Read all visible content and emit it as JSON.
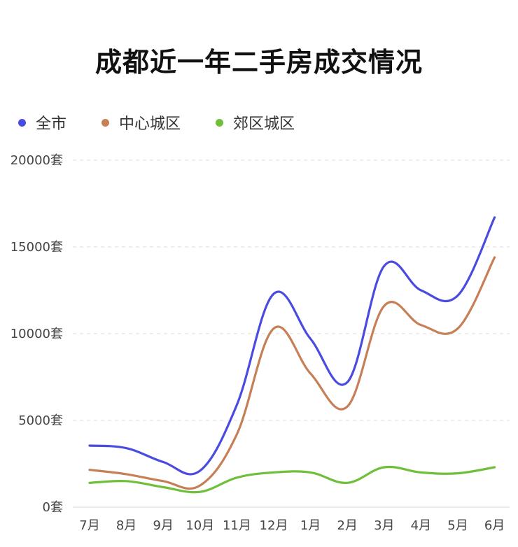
{
  "title": "成都近一年二手房成交情况",
  "chart_data": {
    "type": "line",
    "title": "成都近一年二手房成交情况",
    "categories": [
      "7月",
      "8月",
      "9月",
      "10月",
      "11月",
      "12月",
      "1月",
      "2月",
      "3月",
      "4月",
      "5月",
      "6月"
    ],
    "y_ticks": [
      "0套",
      "5000套",
      "10000套",
      "15000套",
      "20000套"
    ],
    "ylim": [
      0,
      20000
    ],
    "grid": true,
    "legend_position": "top-left",
    "series": [
      {
        "name": "全市",
        "color": "#4a4be0",
        "values": [
          3550,
          3400,
          2600,
          2100,
          5900,
          12300,
          9700,
          7200,
          13900,
          12500,
          12200,
          16700
        ]
      },
      {
        "name": "中心城区",
        "color": "#c67f56",
        "values": [
          2150,
          1900,
          1500,
          1250,
          4200,
          10300,
          7700,
          5800,
          11600,
          10500,
          10300,
          14400
        ]
      },
      {
        "name": "郊区城区",
        "color": "#6fbf3a",
        "values": [
          1400,
          1500,
          1150,
          880,
          1700,
          2000,
          2000,
          1400,
          2300,
          2000,
          1950,
          2300
        ]
      }
    ]
  }
}
